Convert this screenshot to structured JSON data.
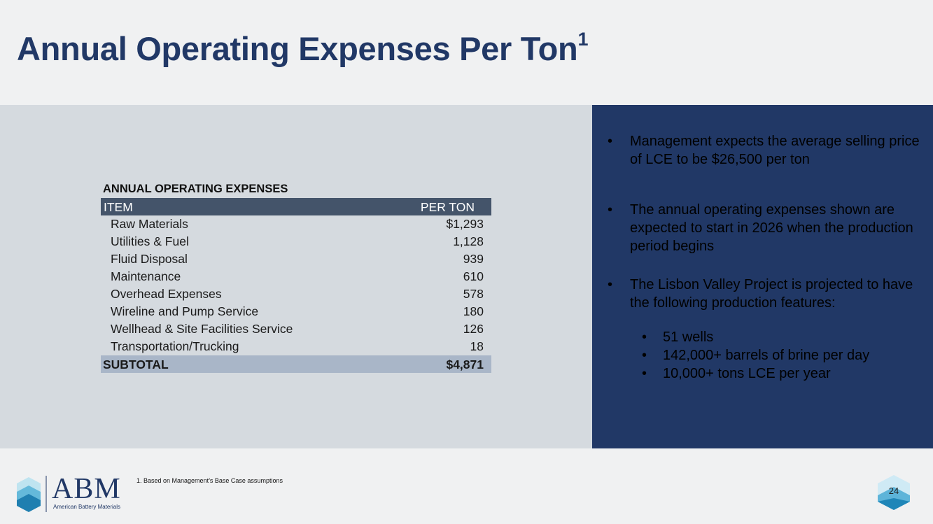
{
  "slide": {
    "title": "Annual Operating Expenses Per Ton",
    "title_superscript": "1",
    "page_number": "24",
    "footnote": "1. Based on Management’s Base Case assumptions"
  },
  "table": {
    "caption": "ANNUAL OPERATING EXPENSES",
    "headers": [
      "ITEM",
      "PER TON"
    ],
    "rows": [
      {
        "item": "Raw Materials",
        "value": "$1,293"
      },
      {
        "item": "Utilities & Fuel",
        "value": "1,128"
      },
      {
        "item": "Fluid Disposal",
        "value": "939"
      },
      {
        "item": "Maintenance",
        "value": "610"
      },
      {
        "item": "Overhead Expenses",
        "value": "578"
      },
      {
        "item": "Wireline and Pump Service",
        "value": "180"
      },
      {
        "item": "Wellhead & Site Facilities Service",
        "value": "126"
      },
      {
        "item": "Transportation/Trucking",
        "value": "18"
      }
    ],
    "subtotal": {
      "label": "SUBTOTAL",
      "value": "$4,871"
    }
  },
  "bullets": [
    "Management  expects the average selling price of LCE to be $26,500 per ton",
    "The annual operating expenses shown are expected to start in 2026 when the production period begins",
    "The Lisbon Valley Project is projected to have the following production features:"
  ],
  "sub_bullets": [
    "51 wells",
    "142,000+ barrels of brine per day",
    "10,000+ tons LCE per year"
  ],
  "bullet_glyph": "•",
  "logo": {
    "text": "ABM",
    "subtext": "American Battery Materials"
  },
  "colors": {
    "navy": "#213866",
    "panel_gray": "#d5dadf",
    "header_slate": "#44546a",
    "subtotal_blue": "#a9b6c8",
    "teal": "#2fa3c9"
  }
}
